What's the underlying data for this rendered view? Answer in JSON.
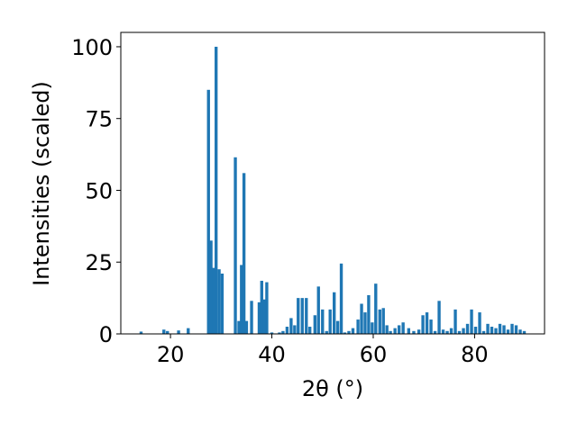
{
  "chart_data": {
    "type": "bar",
    "title": "",
    "xlabel": "2θ (°)",
    "ylabel": "Intensities (scaled)",
    "xlim": [
      10.2,
      93.8
    ],
    "ylim": [
      0,
      105
    ],
    "xticks": [
      20,
      40,
      60,
      80
    ],
    "yticks": [
      0,
      25,
      50,
      75,
      100
    ],
    "grid": false,
    "bar_width": 0.6,
    "color": "#1f77b4",
    "x": [
      14.2,
      18.7,
      19.4,
      21.6,
      23.5,
      27.5,
      28.0,
      28.5,
      29.0,
      29.6,
      30.2,
      32.8,
      33.5,
      34.0,
      34.5,
      35.0,
      36.0,
      37.5,
      38.0,
      38.5,
      39.0,
      40.0,
      41.5,
      42.2,
      43.0,
      43.8,
      44.5,
      45.2,
      46.0,
      46.8,
      47.5,
      48.5,
      49.2,
      50.0,
      50.8,
      51.5,
      52.3,
      53.0,
      53.7,
      54.4,
      55.2,
      56.0,
      57.0,
      57.7,
      58.4,
      59.1,
      59.8,
      60.5,
      61.3,
      62.0,
      62.7,
      63.4,
      64.3,
      65.1,
      65.9,
      67.0,
      68.0,
      69.0,
      69.8,
      70.6,
      71.4,
      72.2,
      73.0,
      73.8,
      74.6,
      75.4,
      76.2,
      77.0,
      77.8,
      78.6,
      79.4,
      80.2,
      81.0,
      81.8,
      82.6,
      83.4,
      84.2,
      85.0,
      85.8,
      86.6,
      87.4,
      88.2,
      89.0,
      89.8
    ],
    "values": [
      0.8,
      1.5,
      1.0,
      1.2,
      2.0,
      85,
      32.5,
      23,
      100,
      22.5,
      21,
      61.5,
      4.5,
      24,
      56,
      4.5,
      11.5,
      11,
      18.5,
      12,
      18,
      0.5,
      0.5,
      1.0,
      2.5,
      5.5,
      3.0,
      12.5,
      12.5,
      12.5,
      2.5,
      6.5,
      16.5,
      8.5,
      1.0,
      8.5,
      14.5,
      4.5,
      24.5,
      0.5,
      1.0,
      2.0,
      5.0,
      10.5,
      7.5,
      13.5,
      4.0,
      17.5,
      8.5,
      9.0,
      3.0,
      1.0,
      2.0,
      3.0,
      4.0,
      2.0,
      1.0,
      1.5,
      6.5,
      7.5,
      5.0,
      1.0,
      11.5,
      1.5,
      1.0,
      2.0,
      8.5,
      1.0,
      2.0,
      3.5,
      8.5,
      2.5,
      7.5,
      1.0,
      3.5,
      2.5,
      2.0,
      3.5,
      3.0,
      1.5,
      3.5,
      3.0,
      1.5,
      1.0
    ]
  }
}
